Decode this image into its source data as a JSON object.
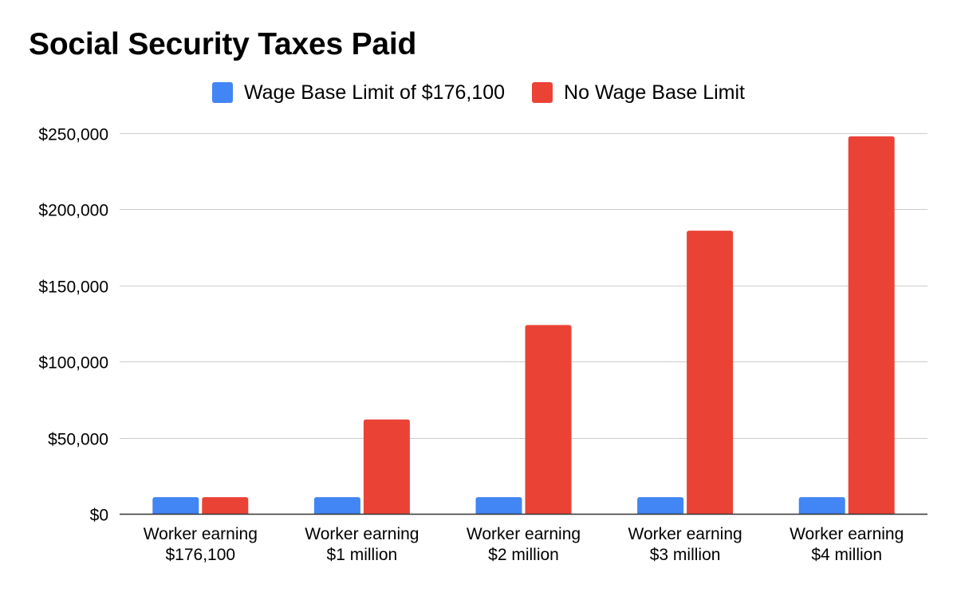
{
  "chart_data": {
    "type": "bar",
    "title": "Social Security Taxes Paid",
    "xlabel": "",
    "ylabel": "",
    "categories": [
      [
        "Worker earning",
        "$176,100"
      ],
      [
        "Worker earning",
        "$1 million"
      ],
      [
        "Worker earning",
        "$2 million"
      ],
      [
        "Worker earning",
        "$3 million"
      ],
      [
        "Worker earning",
        "$4 million"
      ]
    ],
    "series": [
      {
        "name": "Wage Base Limit of $176,100",
        "color": "#4285F4",
        "values": [
          10918,
          10918,
          10918,
          10918,
          10918
        ]
      },
      {
        "name": "No Wage Base Limit",
        "color": "#EA4335",
        "values": [
          10918,
          62000,
          124000,
          186000,
          248000
        ]
      }
    ],
    "ylim": [
      0,
      250000
    ],
    "yticks": [
      0,
      50000,
      100000,
      150000,
      200000,
      250000
    ],
    "ytick_labels": [
      "$0",
      "$50,000",
      "$100,000",
      "$150,000",
      "$200,000",
      "$250,000"
    ],
    "grid": true,
    "legend_position": "top-center"
  }
}
